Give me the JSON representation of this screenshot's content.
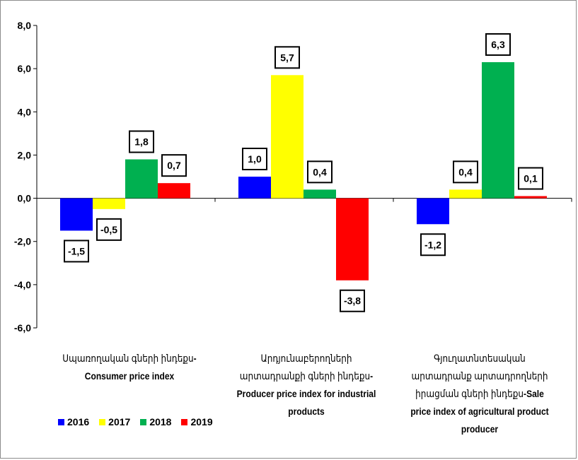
{
  "chart_data": {
    "type": "bar",
    "title": "",
    "xlabel": "",
    "ylabel": "",
    "ylim": [
      -6,
      8
    ],
    "y_ticks": [
      "-6,0",
      "-4,0",
      "-2,0",
      "0,0",
      "2,0",
      "4,0",
      "6,0",
      "8,0"
    ],
    "grid": false,
    "legend_position": "bottom-left",
    "categories": [
      {
        "armenian": "Սպառողական գների ինդեքս",
        "english": "-Consumer price index"
      },
      {
        "armenian": "Արդյունաբերողների արտադրանքի գների ինդեքս",
        "english": "-Producer price index for industrial products"
      },
      {
        "armenian": "Գյուղատնտեսական արտադրանք արտադրողների իրացման գների ինդեքս",
        "english": "-Sale price index of agricultural product producer"
      }
    ],
    "series": [
      {
        "name": "2016",
        "color": "#0000ff",
        "values": [
          -1.5,
          1.0,
          -1.2
        ],
        "labels": [
          "-1,5",
          "1,0",
          "-1,2"
        ]
      },
      {
        "name": "2017",
        "color": "#ffff00",
        "values": [
          -0.5,
          5.7,
          0.4
        ],
        "labels": [
          "-0,5",
          "5,7",
          "0,4"
        ]
      },
      {
        "name": "2018",
        "color": "#00b050",
        "values": [
          1.8,
          0.4,
          6.3
        ],
        "labels": [
          "1,8",
          "0,4",
          "6,3"
        ]
      },
      {
        "name": "2019",
        "color": "#ff0000",
        "values": [
          0.7,
          -3.8,
          0.1
        ],
        "labels": [
          "0,7",
          "-3,8",
          "0,1"
        ]
      }
    ]
  }
}
